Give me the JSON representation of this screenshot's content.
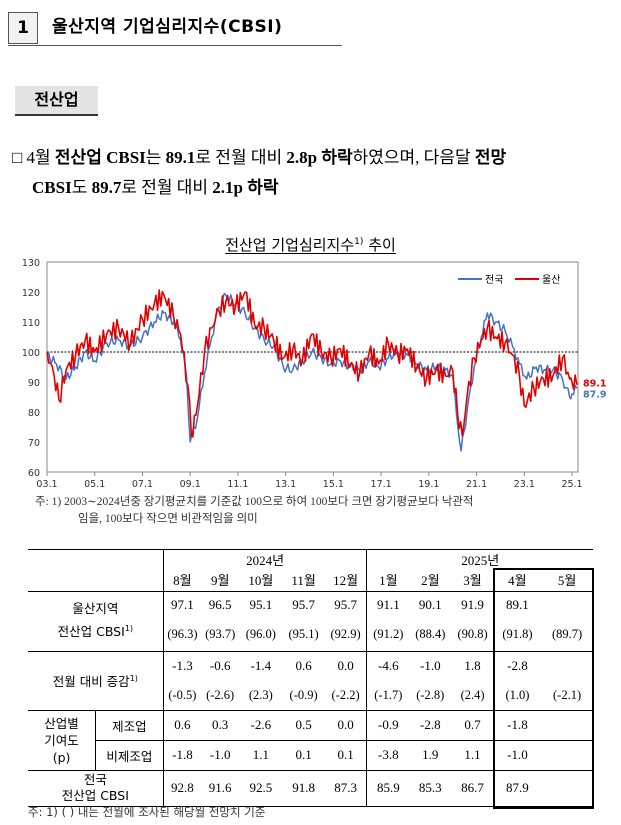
{
  "section": {
    "number": "1",
    "title": "울산지역 기업심리지수(CBSI)"
  },
  "subsection": "전산업",
  "summary": {
    "bullet": "□",
    "line1": [
      {
        "t": "4월 ",
        "b": false
      },
      {
        "t": "전산업 CBSI",
        "b": true
      },
      {
        "t": "는 ",
        "b": false
      },
      {
        "t": "89.1",
        "b": true
      },
      {
        "t": "로 전월 대비 ",
        "b": false
      },
      {
        "t": "2.8p 하락",
        "b": true
      },
      {
        "t": "하였으며, 다음달 ",
        "b": false
      },
      {
        "t": "전망",
        "b": true
      }
    ],
    "line2": [
      {
        "t": "CBSI",
        "b": true
      },
      {
        "t": "도 ",
        "b": false
      },
      {
        "t": "89.7",
        "b": true
      },
      {
        "t": "로 전월 대비 ",
        "b": false
      },
      {
        "t": "2.1p 하락",
        "b": true
      }
    ]
  },
  "chart": {
    "title": "전산업 기업심리지수",
    "title_sup": "1)",
    "title_tail": " 추이",
    "note": "주: 1) 2003∼2024년중 장기평균치를 기준값 100으로 하여 100보다 크면 장기평균보다 낙관적 임을, 100보다 작으면 비관적임을 의미",
    "note_line1": "주:  1)  2003∼2024년중 장기평균치를 기준값 100으로 하여 100보다 크면 장기평균보다 낙관적",
    "note_line2": "임을, 100보다 작으면 비관적임을 의미",
    "colors": {
      "national": "#4472c4",
      "ulsan": "#e00000",
      "baseline": "#000000"
    }
  },
  "chart_data": {
    "type": "line",
    "ylim": [
      60,
      130
    ],
    "yticks": [
      60,
      70,
      80,
      90,
      100,
      110,
      120,
      130
    ],
    "xlim": [
      2003.0,
      2025.25
    ],
    "xticks": [
      "03.1",
      "05.1",
      "07.1",
      "09.1",
      "11.1",
      "13.1",
      "15.1",
      "17.1",
      "19.1",
      "21.1",
      "23.1",
      "25.1"
    ],
    "baseline": 100,
    "legend_position": "top-right",
    "end_labels": [
      "89.1",
      "87.9"
    ],
    "series": [
      {
        "name": "전국",
        "color": "#4472c4",
        "points": [
          [
            2003.0,
            99
          ],
          [
            2003.4,
            96
          ],
          [
            2003.8,
            91
          ],
          [
            2004.2,
            95
          ],
          [
            2004.6,
            100
          ],
          [
            2005.0,
            97
          ],
          [
            2005.5,
            103
          ],
          [
            2006.0,
            104
          ],
          [
            2006.5,
            102
          ],
          [
            2007.0,
            105
          ],
          [
            2007.5,
            110
          ],
          [
            2007.9,
            113
          ],
          [
            2008.3,
            110
          ],
          [
            2008.6,
            104
          ],
          [
            2008.85,
            92
          ],
          [
            2009.0,
            70
          ],
          [
            2009.3,
            78
          ],
          [
            2009.6,
            93
          ],
          [
            2009.9,
            105
          ],
          [
            2010.2,
            115
          ],
          [
            2010.5,
            119
          ],
          [
            2010.9,
            116
          ],
          [
            2011.3,
            113
          ],
          [
            2011.7,
            108
          ],
          [
            2012.1,
            104
          ],
          [
            2012.5,
            102
          ],
          [
            2012.9,
            95
          ],
          [
            2013.3,
            94
          ],
          [
            2013.7,
            97
          ],
          [
            2014.1,
            100
          ],
          [
            2014.5,
            98
          ],
          [
            2014.9,
            96
          ],
          [
            2015.3,
            97
          ],
          [
            2015.7,
            95
          ],
          [
            2016.1,
            94
          ],
          [
            2016.5,
            97
          ],
          [
            2016.9,
            95
          ],
          [
            2017.3,
            98
          ],
          [
            2017.7,
            100
          ],
          [
            2018.1,
            99
          ],
          [
            2018.5,
            96
          ],
          [
            2018.9,
            94
          ],
          [
            2019.3,
            95
          ],
          [
            2019.7,
            94
          ],
          [
            2020.0,
            92
          ],
          [
            2020.15,
            80
          ],
          [
            2020.35,
            67
          ],
          [
            2020.6,
            80
          ],
          [
            2020.9,
            95
          ],
          [
            2021.2,
            105
          ],
          [
            2021.45,
            113
          ],
          [
            2021.8,
            110
          ],
          [
            2022.2,
            107
          ],
          [
            2022.5,
            102
          ],
          [
            2022.8,
            96
          ],
          [
            2023.1,
            91
          ],
          [
            2023.5,
            95
          ],
          [
            2023.9,
            94
          ],
          [
            2024.2,
            94
          ],
          [
            2024.6,
            91
          ],
          [
            2024.9,
            85
          ],
          [
            2025.0,
            86
          ],
          [
            2025.2,
            87.9
          ]
        ]
      },
      {
        "name": "울산",
        "color": "#e00000",
        "points": [
          [
            2003.0,
            100
          ],
          [
            2003.3,
            92
          ],
          [
            2003.5,
            84
          ],
          [
            2003.8,
            94
          ],
          [
            2004.2,
            99
          ],
          [
            2004.6,
            104
          ],
          [
            2005.0,
            100
          ],
          [
            2005.5,
            106
          ],
          [
            2006.0,
            108
          ],
          [
            2006.5,
            103
          ],
          [
            2007.0,
            111
          ],
          [
            2007.5,
            116
          ],
          [
            2007.9,
            119
          ],
          [
            2008.3,
            112
          ],
          [
            2008.6,
            106
          ],
          [
            2008.9,
            89
          ],
          [
            2009.05,
            72
          ],
          [
            2009.3,
            82
          ],
          [
            2009.6,
            100
          ],
          [
            2009.9,
            108
          ],
          [
            2010.2,
            114
          ],
          [
            2010.5,
            117
          ],
          [
            2010.9,
            115
          ],
          [
            2011.3,
            120
          ],
          [
            2011.7,
            109
          ],
          [
            2012.1,
            108
          ],
          [
            2012.5,
            104
          ],
          [
            2012.9,
            98
          ],
          [
            2013.3,
            101
          ],
          [
            2013.7,
            97
          ],
          [
            2014.1,
            106
          ],
          [
            2014.5,
            100
          ],
          [
            2014.9,
            98
          ],
          [
            2015.3,
            101
          ],
          [
            2015.7,
            96
          ],
          [
            2016.1,
            93
          ],
          [
            2016.5,
            100
          ],
          [
            2016.9,
            96
          ],
          [
            2017.3,
            103
          ],
          [
            2017.7,
            99
          ],
          [
            2018.1,
            101
          ],
          [
            2018.5,
            95
          ],
          [
            2018.9,
            91
          ],
          [
            2019.3,
            94
          ],
          [
            2019.7,
            92
          ],
          [
            2020.0,
            94
          ],
          [
            2020.2,
            80
          ],
          [
            2020.4,
            72
          ],
          [
            2020.6,
            85
          ],
          [
            2020.9,
            98
          ],
          [
            2021.2,
            104
          ],
          [
            2021.45,
            108
          ],
          [
            2021.8,
            105
          ],
          [
            2022.2,
            103
          ],
          [
            2022.5,
            99
          ],
          [
            2022.8,
            92
          ],
          [
            2023.0,
            82
          ],
          [
            2023.4,
            88
          ],
          [
            2023.8,
            91
          ],
          [
            2024.2,
            92
          ],
          [
            2024.6,
            98
          ],
          [
            2024.9,
            91
          ],
          [
            2025.0,
            90
          ],
          [
            2025.2,
            89.1
          ]
        ]
      }
    ]
  },
  "table": {
    "year_2024": "2024년",
    "year_2025": "2025년",
    "months": [
      "8월",
      "9월",
      "10월",
      "11월",
      "12월",
      "1월",
      "2월",
      "3월",
      "4월",
      "5월"
    ],
    "row_ulsan": {
      "label1": "울산지역",
      "label2": "전산업 CBSI",
      "label2_sup": "1)",
      "values": [
        "97.1",
        "96.5",
        "95.1",
        "95.7",
        "95.7",
        "91.1",
        "90.1",
        "91.9",
        "89.1",
        ""
      ],
      "forecast": [
        "(96.3)",
        "(93.7)",
        "(96.0)",
        "(95.1)",
        "(92.9)",
        "(91.2)",
        "(88.4)",
        "(90.8)",
        "(91.8)",
        "(89.7)"
      ]
    },
    "row_change": {
      "label": "전월 대비 증감",
      "label_sup": "1)",
      "values": [
        "-1.3",
        "-0.6",
        "-1.4",
        "0.6",
        "0.0",
        "-4.6",
        "-1.0",
        "1.8",
        "-2.8",
        ""
      ],
      "forecast": [
        "(-0.5)",
        "(-2.6)",
        "(2.3)",
        "(-0.9)",
        "(-2.2)",
        "(-1.7)",
        "(-2.8)",
        "(2.4)",
        "(1.0)",
        "(-2.1)"
      ]
    },
    "row_contrib": {
      "label_l1": "산업별",
      "label_l2": "기여도",
      "label_l3": "(p)",
      "manufacturing": {
        "label": "제조업",
        "values": [
          "0.6",
          "0.3",
          "-2.6",
          "0.5",
          "0.0",
          "-0.9",
          "-2.8",
          "0.7",
          "-1.8",
          ""
        ]
      },
      "non_manufacturing": {
        "label": "비제조업",
        "values": [
          "-1.8",
          "-1.0",
          "1.1",
          "0.1",
          "0.1",
          "-3.8",
          "1.9",
          "1.1",
          "-1.0",
          ""
        ]
      }
    },
    "row_national": {
      "label1": "전국",
      "label2": "전산업 CBSI",
      "values": [
        "92.8",
        "91.6",
        "92.5",
        "91.8",
        "87.3",
        "85.9",
        "85.3",
        "86.7",
        "87.9",
        ""
      ]
    },
    "footnote": "주: 1) (   ) 내는 전월에 조사된 해당월 전망치 기준"
  }
}
